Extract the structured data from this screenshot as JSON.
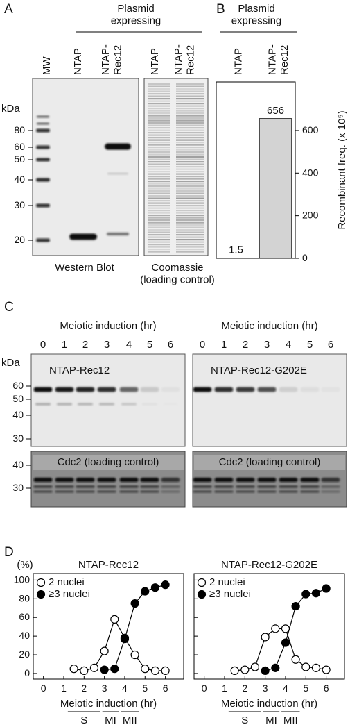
{
  "panel_a": {
    "label": "A",
    "header": "Plasmid\nexpressing",
    "western_lanes": [
      "MW",
      "NTAP",
      "NTAP-\nRec12"
    ],
    "coomassie_lanes": [
      "NTAP",
      "NTAP-\nRec12"
    ],
    "unit": "kDa",
    "markers": [
      "80",
      "60",
      "50",
      "40",
      "30",
      "20"
    ],
    "western_caption": "Western Blot",
    "coomassie_caption": "Coomassie\n(loading control)"
  },
  "panel_c": {
    "label": "C",
    "xlabel": "Meiotic induction (hr)",
    "lanes": [
      "0",
      "1",
      "2",
      "3",
      "4",
      "5",
      "6"
    ],
    "gels": [
      "NTAP-Rec12",
      "NTAP-Rec12-G202E"
    ],
    "unit": "kDa",
    "markers": [
      "60",
      "50",
      "40",
      "30"
    ],
    "control_markers": [
      "40",
      "30"
    ],
    "control": "Cdc2 (loading control)"
  },
  "chart_data": [
    {
      "type": "bar",
      "label": "B",
      "header": "Plasmid\nexpressing",
      "ylabel": "Recombinant freq. (x 10⁵)",
      "categories": [
        "NTAP",
        "NTAP-\nRec12"
      ],
      "values": [
        1.5,
        656
      ],
      "colors": [
        "#ffffff",
        "#d3d3d3"
      ],
      "ylim": [
        0,
        828
      ],
      "yticks": [
        0,
        200,
        400,
        600
      ]
    },
    {
      "type": "line",
      "label": "D",
      "title": "NTAP-Rec12",
      "ylabel": "(%)",
      "xlabel": "Meiotic induction (hr)",
      "x": [
        1.5,
        2,
        2.5,
        3,
        3.5,
        4,
        4.5,
        5,
        5.5,
        6
      ],
      "series": [
        {
          "name": "2 nuclei",
          "color": "#ffffff",
          "values": [
            5,
            3,
            6,
            24,
            58,
            38,
            20,
            5,
            3,
            3
          ]
        },
        {
          "name": "≥3 nuclei",
          "color": "#000000",
          "values": [
            null,
            null,
            null,
            4,
            5,
            37,
            75,
            88,
            92,
            95
          ]
        }
      ],
      "xlim": [
        -0.5,
        6.9
      ],
      "ylim": [
        -6,
        107
      ],
      "xticks": [
        0,
        1,
        2,
        3,
        4,
        5,
        6
      ],
      "yticks": [
        0,
        20,
        40,
        60,
        80,
        100
      ],
      "ytick_labels": true,
      "legend": "upper left",
      "phases": [
        "S",
        "MI",
        "MII"
      ]
    },
    {
      "type": "line",
      "title": "NTAP-Rec12-G202E",
      "xlabel": "Meiotic induction (hr)",
      "x": [
        1.5,
        2,
        2.5,
        3,
        3.5,
        4,
        4.5,
        5,
        5.5,
        6
      ],
      "series": [
        {
          "name": "2 nuclei",
          "color": "#ffffff",
          "values": [
            3,
            4,
            7,
            39,
            48,
            48,
            15,
            7,
            6,
            4
          ]
        },
        {
          "name": "≥3 nuclei",
          "color": "#000000",
          "values": [
            null,
            null,
            null,
            3,
            6,
            33,
            72,
            85,
            86,
            91
          ]
        }
      ],
      "xlim": [
        -0.5,
        6.9
      ],
      "ylim": [
        -6,
        107
      ],
      "xticks": [
        0,
        1,
        2,
        3,
        4,
        5,
        6
      ],
      "yticks": [
        0,
        20,
        40,
        60,
        80,
        100
      ],
      "ytick_labels": false,
      "legend": "upper left",
      "phases": [
        "S",
        "MI",
        "MII"
      ]
    }
  ]
}
